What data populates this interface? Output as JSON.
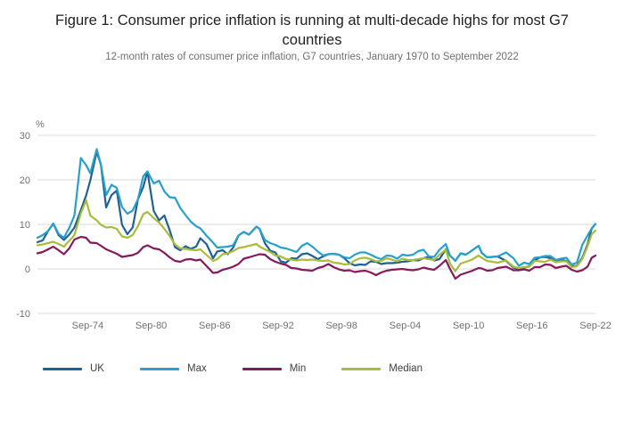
{
  "title": "Figure 1: Consumer price inflation is running at multi-decade highs for most G7 countries",
  "subtitle": "12-month rates of consumer price inflation, G7 countries, January 1970 to September 2022",
  "chart_data": {
    "type": "line",
    "title": "Figure 1: Consumer price inflation is running at multi-decade highs for most G7 countries",
    "subtitle": "12-month rates of consumer price inflation, G7 countries, January 1970 to September 2022",
    "xlabel": "",
    "ylabel": "%",
    "unit_label": "%",
    "ylim": [
      -10,
      30
    ],
    "yticks": [
      30,
      20,
      10,
      0,
      -10
    ],
    "xlim": [
      1970.0,
      2022.75
    ],
    "xticks": [
      {
        "x": 1974.75,
        "label": "Sep-74"
      },
      {
        "x": 1980.75,
        "label": "Sep-80"
      },
      {
        "x": 1986.75,
        "label": "Sep-86"
      },
      {
        "x": 1992.75,
        "label": "Sep-92"
      },
      {
        "x": 1998.75,
        "label": "Sep-98"
      },
      {
        "x": 2004.75,
        "label": "Sep-04"
      },
      {
        "x": 2010.75,
        "label": "Sep-10"
      },
      {
        "x": 2016.75,
        "label": "Sep-16"
      },
      {
        "x": 2022.75,
        "label": "Sep-22"
      }
    ],
    "grid": true,
    "legend_position": "bottom",
    "columns": [
      "x_year",
      "UK",
      "Max",
      "Min",
      "Median"
    ],
    "series": [
      {
        "name": "UK",
        "color": "#206095",
        "column": 1
      },
      {
        "name": "Max",
        "color": "#27a0cc",
        "column": 2
      },
      {
        "name": "Min",
        "color": "#871a5b",
        "column": 3
      },
      {
        "name": "Median",
        "color": "#a8bd3a",
        "column": 4
      }
    ],
    "points": [
      [
        1970.0,
        6.0,
        7.0,
        3.5,
        5.3
      ],
      [
        1970.5,
        6.4,
        7.6,
        3.8,
        5.5
      ],
      [
        1971.0,
        8.5,
        8.5,
        4.4,
        5.8
      ],
      [
        1971.5,
        10.2,
        10.2,
        5.0,
        6.1
      ],
      [
        1972.0,
        7.6,
        7.9,
        4.2,
        5.6
      ],
      [
        1972.5,
        6.5,
        7.0,
        3.3,
        5.0
      ],
      [
        1973.0,
        7.7,
        9.2,
        4.6,
        6.3
      ],
      [
        1973.5,
        9.3,
        12.0,
        6.6,
        7.6
      ],
      [
        1974.1,
        13.2,
        24.9,
        7.2,
        12.5
      ],
      [
        1974.6,
        16.5,
        23.3,
        7.0,
        15.4
      ],
      [
        1975.0,
        19.9,
        21.5,
        5.9,
        12.0
      ],
      [
        1975.6,
        26.3,
        26.9,
        5.8,
        10.9
      ],
      [
        1976.0,
        23.4,
        23.4,
        5.2,
        9.9
      ],
      [
        1976.5,
        13.8,
        16.6,
        4.4,
        9.3
      ],
      [
        1977.0,
        16.6,
        18.9,
        3.9,
        9.4
      ],
      [
        1977.5,
        17.6,
        18.2,
        3.4,
        9.0
      ],
      [
        1978.0,
        9.9,
        13.9,
        2.7,
        7.3
      ],
      [
        1978.5,
        7.8,
        12.4,
        2.9,
        7.0
      ],
      [
        1979.0,
        9.3,
        13.1,
        3.1,
        7.6
      ],
      [
        1979.5,
        15.6,
        15.6,
        3.6,
        9.6
      ],
      [
        1980.0,
        18.4,
        20.8,
        4.9,
        12.3
      ],
      [
        1980.4,
        21.9,
        21.9,
        5.3,
        12.8
      ],
      [
        1981.0,
        13.0,
        19.2,
        4.6,
        11.4
      ],
      [
        1981.5,
        10.9,
        19.8,
        4.4,
        10.4
      ],
      [
        1982.0,
        12.0,
        17.4,
        3.6,
        9.0
      ],
      [
        1982.5,
        8.7,
        16.1,
        2.6,
        7.4
      ],
      [
        1983.0,
        4.9,
        16.0,
        1.8,
        5.5
      ],
      [
        1983.5,
        4.2,
        13.7,
        1.6,
        4.6
      ],
      [
        1984.0,
        5.1,
        12.1,
        2.1,
        4.5
      ],
      [
        1984.5,
        4.5,
        10.6,
        2.2,
        4.3
      ],
      [
        1985.0,
        5.0,
        9.6,
        1.9,
        4.2
      ],
      [
        1985.4,
        6.9,
        9.1,
        2.1,
        4.4
      ],
      [
        1986.0,
        5.5,
        7.4,
        0.6,
        3.1
      ],
      [
        1986.6,
        2.4,
        5.9,
        -0.9,
        1.8
      ],
      [
        1987.0,
        3.9,
        4.8,
        -0.8,
        2.2
      ],
      [
        1987.5,
        4.2,
        4.9,
        -0.2,
        3.3
      ],
      [
        1988.0,
        3.3,
        5.0,
        0.1,
        3.5
      ],
      [
        1988.5,
        4.8,
        5.3,
        0.5,
        4.0
      ],
      [
        1989.0,
        7.5,
        7.5,
        1.1,
        4.7
      ],
      [
        1989.5,
        8.3,
        8.3,
        2.3,
        4.9
      ],
      [
        1990.0,
        7.7,
        7.7,
        2.6,
        5.2
      ],
      [
        1990.7,
        9.5,
        9.5,
        3.1,
        5.6
      ],
      [
        1991.0,
        9.0,
        9.0,
        3.3,
        5.0
      ],
      [
        1991.5,
        5.8,
        6.5,
        3.2,
        4.4
      ],
      [
        1992.0,
        4.1,
        5.8,
        2.2,
        3.8
      ],
      [
        1992.5,
        3.7,
        5.4,
        1.6,
        3.0
      ],
      [
        1993.0,
        1.7,
        4.8,
        1.2,
        2.8
      ],
      [
        1993.5,
        1.4,
        4.6,
        0.9,
        2.2
      ],
      [
        1994.0,
        2.4,
        4.2,
        0.2,
        2.1
      ],
      [
        1994.5,
        2.3,
        3.8,
        0.1,
        1.9
      ],
      [
        1995.0,
        3.3,
        5.2,
        -0.2,
        2.1
      ],
      [
        1995.5,
        3.5,
        5.8,
        -0.3,
        2.0
      ],
      [
        1996.0,
        2.9,
        5.0,
        -0.4,
        2.1
      ],
      [
        1996.5,
        2.2,
        3.9,
        0.2,
        1.9
      ],
      [
        1997.0,
        2.8,
        3.0,
        0.5,
        1.8
      ],
      [
        1997.5,
        3.3,
        3.3,
        1.1,
        1.9
      ],
      [
        1998.0,
        3.4,
        3.4,
        0.4,
        1.4
      ],
      [
        1998.5,
        3.2,
        3.2,
        -0.1,
        1.3
      ],
      [
        1999.0,
        2.4,
        2.6,
        -0.4,
        1.0
      ],
      [
        1999.5,
        1.3,
        2.4,
        -0.3,
        1.1
      ],
      [
        2000.0,
        0.8,
        3.2,
        -0.7,
        1.9
      ],
      [
        2000.5,
        1.0,
        3.7,
        -0.5,
        2.4
      ],
      [
        2001.0,
        0.9,
        3.7,
        -0.4,
        2.5
      ],
      [
        2001.5,
        1.7,
        3.2,
        -0.8,
        2.2
      ],
      [
        2002.0,
        1.6,
        2.6,
        -1.4,
        1.7
      ],
      [
        2002.5,
        1.1,
        2.2,
        -0.8,
        1.8
      ],
      [
        2003.0,
        1.3,
        3.0,
        -0.4,
        2.4
      ],
      [
        2003.5,
        1.3,
        2.9,
        -0.2,
        2.1
      ],
      [
        2004.0,
        1.4,
        2.3,
        -0.1,
        1.7
      ],
      [
        2004.5,
        1.6,
        3.2,
        0.0,
        2.3
      ],
      [
        2005.0,
        1.7,
        3.0,
        -0.2,
        2.0
      ],
      [
        2005.5,
        2.0,
        3.2,
        -0.3,
        2.0
      ],
      [
        2006.0,
        1.9,
        4.0,
        -0.1,
        2.2
      ],
      [
        2006.5,
        2.4,
        4.3,
        0.3,
        2.4
      ],
      [
        2007.0,
        2.7,
        2.8,
        0.0,
        2.2
      ],
      [
        2007.5,
        1.9,
        2.7,
        -0.2,
        2.0
      ],
      [
        2008.0,
        2.2,
        4.3,
        0.7,
        3.2
      ],
      [
        2008.6,
        4.4,
        5.6,
        2.0,
        4.3
      ],
      [
        2009.0,
        3.0,
        3.0,
        0.0,
        1.2
      ],
      [
        2009.5,
        1.8,
        1.8,
        -2.2,
        -0.5
      ],
      [
        2010.0,
        3.5,
        3.5,
        -1.3,
        1.2
      ],
      [
        2010.5,
        3.2,
        3.2,
        -0.9,
        1.6
      ],
      [
        2011.0,
        4.0,
        4.0,
        -0.5,
        2.0
      ],
      [
        2011.7,
        5.2,
        5.2,
        0.2,
        3.0
      ],
      [
        2012.0,
        3.6,
        3.6,
        0.1,
        2.5
      ],
      [
        2012.5,
        2.6,
        2.6,
        -0.4,
        1.8
      ],
      [
        2013.0,
        2.7,
        2.7,
        -0.3,
        1.6
      ],
      [
        2013.5,
        2.8,
        2.8,
        0.2,
        1.4
      ],
      [
        2014.3,
        1.8,
        3.7,
        0.5,
        1.9
      ],
      [
        2015.0,
        0.3,
        2.4,
        -0.3,
        0.5
      ],
      [
        2015.5,
        0.0,
        0.7,
        -0.3,
        0.2
      ],
      [
        2016.0,
        0.3,
        1.4,
        -0.1,
        0.4
      ],
      [
        2016.5,
        0.6,
        1.1,
        -0.4,
        0.5
      ],
      [
        2017.0,
        1.9,
        2.5,
        0.4,
        1.8
      ],
      [
        2017.5,
        2.6,
        2.6,
        0.4,
        1.7
      ],
      [
        2018.0,
        2.7,
        2.9,
        1.0,
        1.6
      ],
      [
        2018.5,
        2.4,
        2.9,
        0.9,
        2.1
      ],
      [
        2019.0,
        1.8,
        2.0,
        0.2,
        1.5
      ],
      [
        2019.5,
        2.0,
        2.3,
        0.5,
        1.7
      ],
      [
        2020.0,
        1.8,
        2.5,
        0.7,
        1.7
      ],
      [
        2020.5,
        0.6,
        1.0,
        -0.2,
        0.4
      ],
      [
        2021.0,
        0.7,
        1.4,
        -0.6,
        0.6
      ],
      [
        2021.5,
        2.5,
        5.4,
        -0.3,
        2.2
      ],
      [
        2022.0,
        5.5,
        7.5,
        0.5,
        5.1
      ],
      [
        2022.4,
        9.1,
        9.1,
        2.5,
        7.8
      ],
      [
        2022.75,
        10.1,
        10.1,
        3.0,
        8.6
      ]
    ]
  }
}
